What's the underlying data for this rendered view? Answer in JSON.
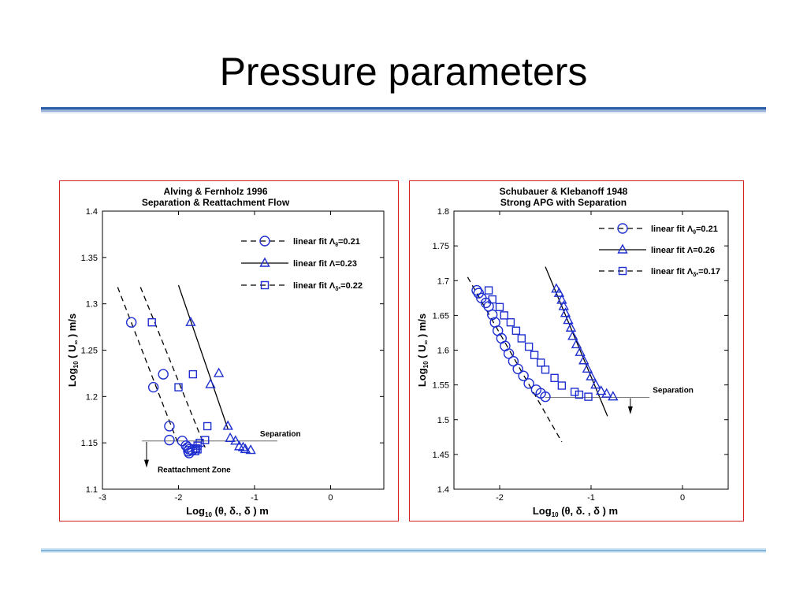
{
  "slide": {
    "title": "Pressure parameters"
  },
  "chart_data": [
    {
      "type": "scatter",
      "title": "Alving & Fernholz  1996",
      "subtitle": "Separation &  Reattachment Flow",
      "xlabel": "Log",
      "xlabel_sub": "10",
      "xlabel_rest": " (θ, δ., δ ) m",
      "ylabel": "Log",
      "ylabel_sub": "10",
      "ylabel_rest": " ( U",
      "ylabel_inf": "∞",
      "ylabel_end": " ) m/s",
      "xlim": [
        -3,
        0.7
      ],
      "ylim": [
        1.1,
        1.4
      ],
      "xticks": [
        -3,
        -2,
        -1,
        0
      ],
      "xtick_labels": [
        "-3",
        "-2",
        "-1",
        "0"
      ],
      "yticks": [
        1.1,
        1.15,
        1.2,
        1.25,
        1.3,
        1.35,
        1.4
      ],
      "ytick_labels": [
        "1.1",
        "1.15",
        "1.2",
        "1.25",
        "1.3",
        "1.35",
        "1.4"
      ],
      "color": "#1f2fd0",
      "legend": [
        {
          "label": "linear fit Λ",
          "sub": "θ",
          "value": "=0.21",
          "marker": "circle",
          "dash": "dash"
        },
        {
          "label": "linear fit Λ",
          "sub": "",
          "value": "=0.23",
          "marker": "triangle",
          "dash": "solid"
        },
        {
          "label": "linear fit Λ",
          "sub": "δ*",
          "value": "=0.22",
          "marker": "square",
          "dash": "dash"
        }
      ],
      "series": [
        {
          "marker": "circle",
          "points": [
            [
              -2.62,
              1.28
            ],
            [
              -2.33,
              1.21
            ],
            [
              -2.2,
              1.224
            ],
            [
              -2.12,
              1.168
            ],
            [
              -2.12,
              1.153
            ],
            [
              -1.95,
              1.152
            ],
            [
              -1.9,
              1.147
            ],
            [
              -1.88,
              1.145
            ],
            [
              -1.87,
              1.141
            ],
            [
              -1.86,
              1.139
            ],
            [
              -1.86,
              1.143
            ],
            [
              -1.82,
              1.142
            ]
          ]
        },
        {
          "marker": "triangle",
          "points": [
            [
              -1.84,
              1.28
            ],
            [
              -1.47,
              1.225
            ],
            [
              -1.58,
              1.213
            ],
            [
              -1.35,
              1.168
            ],
            [
              -1.32,
              1.155
            ],
            [
              -1.25,
              1.152
            ],
            [
              -1.2,
              1.146
            ],
            [
              -1.15,
              1.145
            ],
            [
              -1.12,
              1.143
            ],
            [
              -1.05,
              1.142
            ]
          ]
        },
        {
          "marker": "square",
          "points": [
            [
              -2.35,
              1.28
            ],
            [
              -1.81,
              1.224
            ],
            [
              -2.0,
              1.21
            ],
            [
              -1.62,
              1.168
            ],
            [
              -1.65,
              1.153
            ],
            [
              -1.72,
              1.15
            ],
            [
              -1.75,
              1.147
            ],
            [
              -1.77,
              1.144
            ],
            [
              -1.78,
              1.141
            ],
            [
              -1.75,
              1.143
            ]
          ]
        }
      ],
      "fit_lines": [
        {
          "dash": "dash",
          "points": [
            [
              -2.8,
              1.318
            ],
            [
              -2.0,
              1.148
            ]
          ]
        },
        {
          "dash": "dash",
          "points": [
            [
              -2.5,
              1.318
            ],
            [
              -1.65,
              1.145
            ]
          ]
        },
        {
          "dash": "solid",
          "points": [
            [
              -2.0,
              1.32
            ],
            [
              -1.35,
              1.165
            ]
          ]
        }
      ],
      "annotations": {
        "separation": {
          "label": "Separation",
          "y": 1.152,
          "x": [
            -2.48,
            -0.7
          ]
        },
        "reattachment": {
          "label": "Reattachment Zone",
          "arrow_x": -2.42,
          "arrow_y": [
            1.151,
            1.125
          ]
        }
      }
    },
    {
      "type": "scatter",
      "title": "Schubauer & Klebanoff   1948",
      "subtitle": "Strong APG with Separation",
      "xlabel": "Log",
      "xlabel_sub": "10",
      "xlabel_rest": " (θ, δ. , δ ) m",
      "ylabel": "Log",
      "ylabel_sub": "10",
      "ylabel_rest": " ( U",
      "ylabel_inf": "∞",
      "ylabel_end": " ) m/s",
      "xlim": [
        -2.5,
        0.5
      ],
      "ylim": [
        1.4,
        1.8
      ],
      "xticks": [
        -2,
        -1,
        0
      ],
      "xtick_labels": [
        "-2",
        "-1",
        "0"
      ],
      "yticks": [
        1.4,
        1.45,
        1.5,
        1.55,
        1.6,
        1.65,
        1.7,
        1.75,
        1.8
      ],
      "ytick_labels": [
        "1.4",
        "1.45",
        "1.5",
        "1.55",
        "1.6",
        "1.65",
        "1.7",
        "1.75",
        "1.8"
      ],
      "color": "#1f2fd0",
      "legend": [
        {
          "label": "linear fit Λ",
          "sub": "θ",
          "value": "=0.21",
          "marker": "circle",
          "dash": "dash"
        },
        {
          "label": "linear fit Λ",
          "sub": "",
          "value": "=0.26",
          "marker": "triangle",
          "dash": "solid"
        },
        {
          "label": "linear fit Λ",
          "sub": "δ*",
          "value": "=0.17",
          "marker": "square",
          "dash": "dash"
        }
      ],
      "series": [
        {
          "marker": "circle",
          "points": [
            [
              -2.25,
              1.686
            ],
            [
              -2.23,
              1.682
            ],
            [
              -2.2,
              1.675
            ],
            [
              -2.15,
              1.668
            ],
            [
              -2.12,
              1.663
            ],
            [
              -2.08,
              1.651
            ],
            [
              -2.05,
              1.64
            ],
            [
              -2.02,
              1.628
            ],
            [
              -1.98,
              1.617
            ],
            [
              -1.94,
              1.606
            ],
            [
              -1.9,
              1.595
            ],
            [
              -1.85,
              1.584
            ],
            [
              -1.8,
              1.573
            ],
            [
              -1.74,
              1.563
            ],
            [
              -1.68,
              1.552
            ],
            [
              -1.6,
              1.543
            ],
            [
              -1.55,
              1.538
            ],
            [
              -1.5,
              1.533
            ]
          ]
        },
        {
          "marker": "triangle",
          "points": [
            [
              -1.38,
              1.688
            ],
            [
              -1.35,
              1.682
            ],
            [
              -1.32,
              1.672
            ],
            [
              -1.3,
              1.663
            ],
            [
              -1.28,
              1.653
            ],
            [
              -1.25,
              1.643
            ],
            [
              -1.22,
              1.632
            ],
            [
              -1.2,
              1.62
            ],
            [
              -1.16,
              1.608
            ],
            [
              -1.12,
              1.597
            ],
            [
              -1.08,
              1.585
            ],
            [
              -1.04,
              1.573
            ],
            [
              -1.0,
              1.562
            ],
            [
              -0.95,
              1.55
            ],
            [
              -0.89,
              1.541
            ],
            [
              -0.83,
              1.537
            ],
            [
              -0.76,
              1.533
            ]
          ]
        },
        {
          "marker": "square",
          "points": [
            [
              -2.12,
              1.686
            ],
            [
              -2.08,
              1.673
            ],
            [
              -2.0,
              1.662
            ],
            [
              -1.95,
              1.65
            ],
            [
              -1.88,
              1.64
            ],
            [
              -1.82,
              1.628
            ],
            [
              -1.76,
              1.617
            ],
            [
              -1.68,
              1.605
            ],
            [
              -1.62,
              1.593
            ],
            [
              -1.55,
              1.582
            ],
            [
              -1.5,
              1.572
            ],
            [
              -1.4,
              1.56
            ],
            [
              -1.32,
              1.549
            ],
            [
              -1.18,
              1.54
            ],
            [
              -1.13,
              1.536
            ],
            [
              -1.03,
              1.533
            ]
          ]
        }
      ],
      "fit_lines": [
        {
          "dash": "dash",
          "points": [
            [
              -2.35,
              1.705
            ],
            [
              -1.32,
              1.468
            ]
          ]
        },
        {
          "dash": "solid",
          "points": [
            [
              -1.5,
              1.72
            ],
            [
              -0.82,
              1.505
            ]
          ]
        }
      ],
      "annotations": {
        "separation": {
          "label": "Separation",
          "y": 1.532,
          "x": [
            -1.5,
            -0.36
          ]
        },
        "arrow": {
          "arrow_x": -0.57,
          "arrow_y": [
            1.531,
            1.51
          ]
        }
      }
    }
  ]
}
